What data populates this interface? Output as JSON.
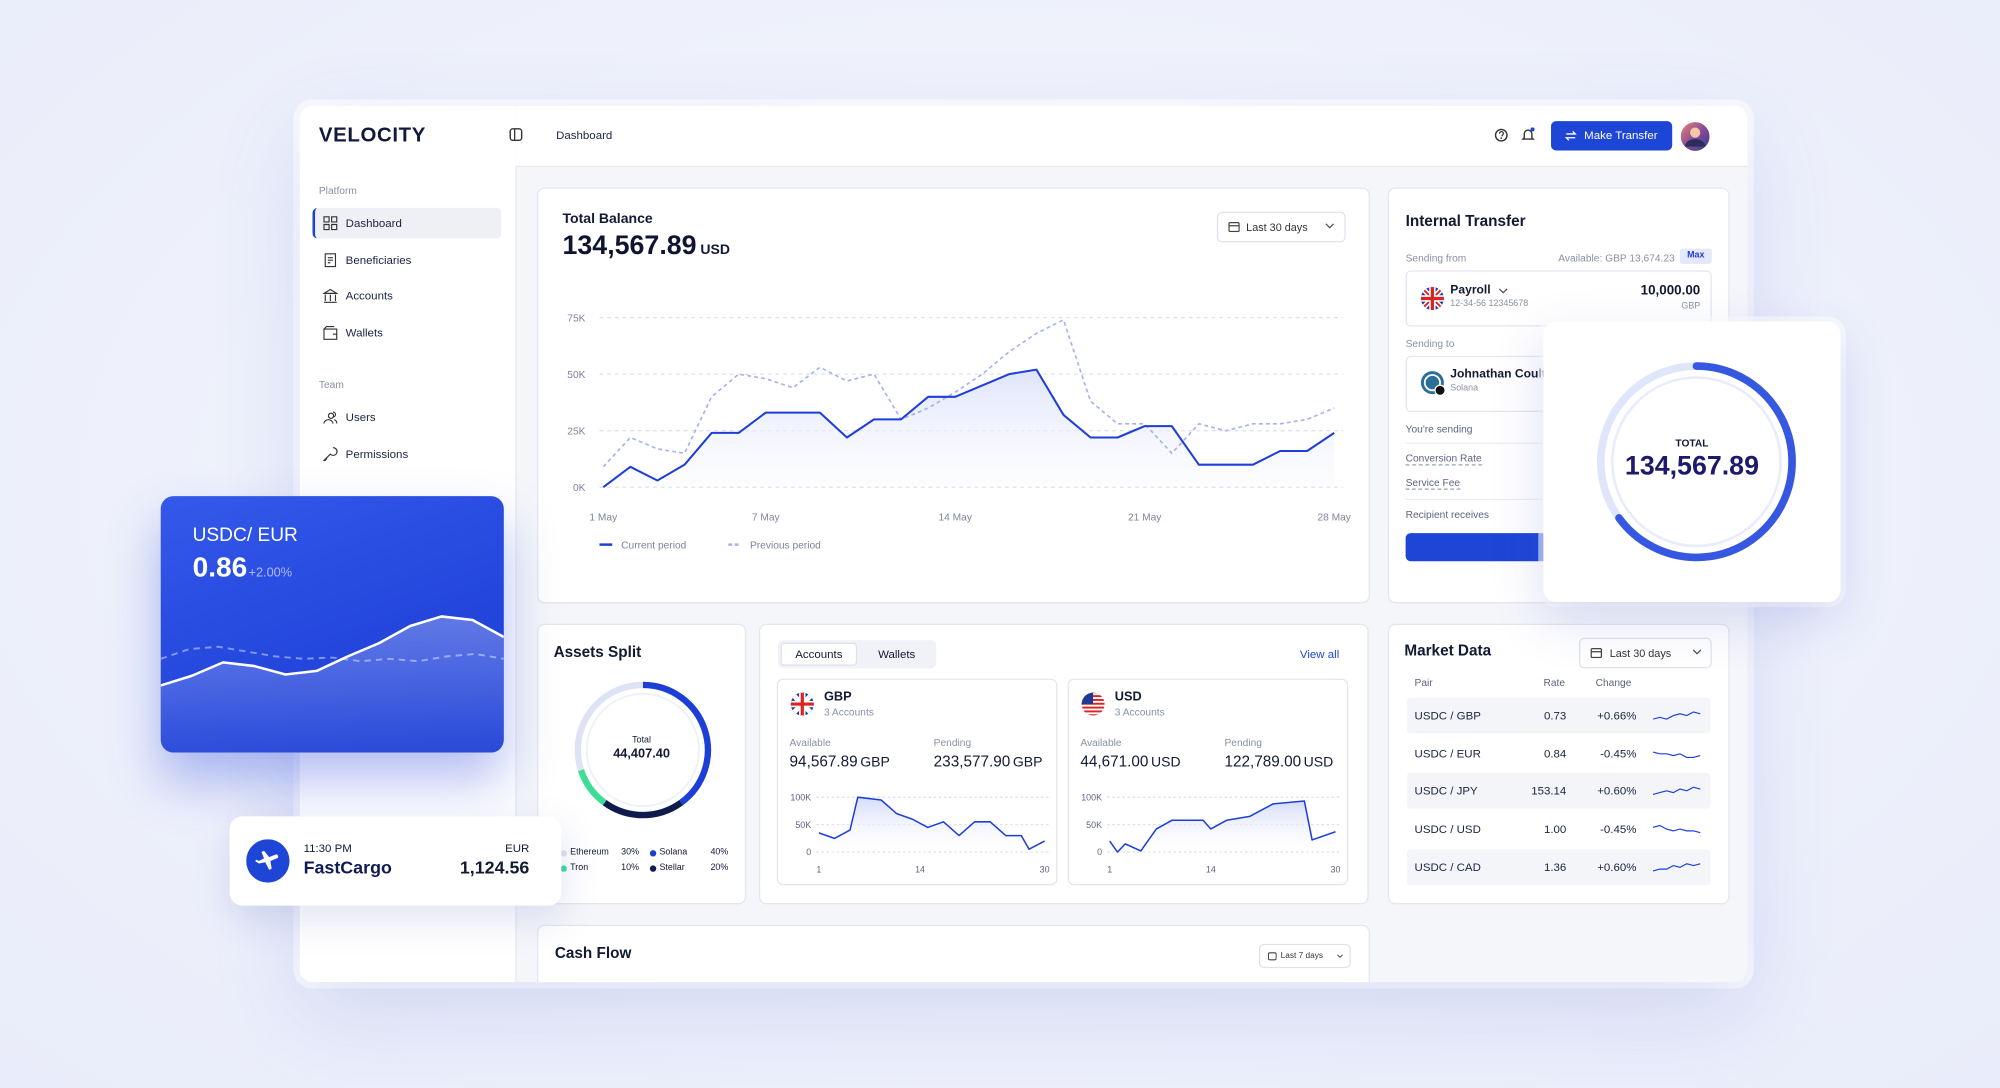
{
  "brand": "VELOCITY",
  "breadcrumb": "Dashboard",
  "action": "Make Transfer",
  "sidebar": {
    "sections": [
      {
        "title": "Platform",
        "items": [
          "Dashboard",
          "Beneficiaries",
          "Accounts",
          "Wallets"
        ]
      },
      {
        "title": "Team",
        "items": [
          "Users",
          "Permissions"
        ]
      }
    ]
  },
  "total_balance": {
    "title": "Total Balance",
    "amount": "134,567.89",
    "currency": "USD",
    "range": "Last 30 days",
    "chart_data": {
      "type": "line",
      "x": [
        1,
        2,
        3,
        4,
        5,
        6,
        7,
        8,
        9,
        10,
        11,
        12,
        13,
        14,
        15,
        16,
        17,
        18,
        19,
        20,
        21,
        22,
        23,
        24,
        25,
        26,
        27,
        28
      ],
      "xlim": [
        1,
        28
      ],
      "xticks": [
        {
          "value": 1,
          "label": "1 May"
        },
        {
          "value": 7,
          "label": "7 May"
        },
        {
          "value": 14,
          "label": "14 May"
        },
        {
          "value": 21,
          "label": "21 May"
        },
        {
          "value": 28,
          "label": "28 May"
        }
      ],
      "ylim": [
        0,
        75000
      ],
      "yticks": [
        {
          "value": 0,
          "label": "0K"
        },
        {
          "value": 25000,
          "label": "25K"
        },
        {
          "value": 50000,
          "label": "50K"
        },
        {
          "value": 75000,
          "label": "75K"
        }
      ],
      "grid": true,
      "series": [
        {
          "name": "Current period",
          "color": "#1d3fd6",
          "values": [
            0,
            9000,
            3000,
            10000,
            24000,
            24000,
            33000,
            33000,
            33000,
            22000,
            30000,
            30000,
            40000,
            40000,
            45000,
            50000,
            52000,
            32000,
            22000,
            22000,
            27000,
            27000,
            10000,
            10000,
            10000,
            16000,
            16000,
            24000
          ]
        },
        {
          "name": "Previous period",
          "color": "#a7b2ee",
          "style": "dashed",
          "values": [
            9000,
            22000,
            17000,
            15000,
            40000,
            50000,
            48000,
            44000,
            53000,
            47000,
            50000,
            30000,
            35000,
            42000,
            50000,
            60000,
            68000,
            74000,
            38000,
            28000,
            28000,
            15000,
            28000,
            25000,
            28000,
            28000,
            30000,
            35000
          ]
        }
      ]
    }
  },
  "internal_transfer": {
    "title": "Internal Transfer",
    "sending_from": "Sending from",
    "available": "Available: GBP 13,674.23",
    "max": "Max",
    "from_account": {
      "name": "Payroll",
      "number": "12-34-56 12345678",
      "amount": "10,000.00",
      "currency": "GBP"
    },
    "sending_to": "Sending to",
    "to_account": {
      "name": "Johnathan Coult",
      "network": "Solana"
    },
    "you_send": "You're sending",
    "conversion_rate": "Conversion Rate",
    "service_fee": "Service Fee",
    "recipient_receives": "Recipient receives"
  },
  "total_widget": {
    "label": "TOTAL",
    "amount": "134,567.89",
    "share": 65
  },
  "rate_card": {
    "pair": "USDC/ EUR",
    "rate": "0.86",
    "change": "+2.00%",
    "chart_data": {
      "type": "area",
      "ylim": [
        0,
        100
      ],
      "series": [
        {
          "color": "#ffffff",
          "values": [
            28,
            36,
            47,
            44,
            37,
            40,
            52,
            63,
            77,
            85,
            82,
            68
          ]
        },
        {
          "color": "#a9bbff",
          "style": "dashed",
          "values": [
            50,
            58,
            60,
            56,
            52,
            50,
            51,
            48,
            50,
            48,
            52,
            54,
            50
          ]
        }
      ]
    }
  },
  "payment_card": {
    "time": "11:30 PM",
    "merchant": "FastCargo",
    "currency": "EUR",
    "amount": "1,124.56"
  },
  "assets_split": {
    "title": "Assets Split",
    "total_label": "Total",
    "total": "44,407.40",
    "chart_data": {
      "type": "donut",
      "categories": [
        "Solana",
        "Stellar",
        "Tron",
        "Ethereum"
      ],
      "values": [
        40,
        20,
        10,
        30
      ],
      "value_labels": [
        "40%",
        "20%",
        "10%",
        "30%"
      ],
      "colors": [
        "#1d3fd6",
        "#0f1b4d",
        "#3ddc97",
        "#dde2f5"
      ]
    }
  },
  "accounts": {
    "tabs": [
      "Accounts",
      "Wallets"
    ],
    "view_all": "View all",
    "items": [
      {
        "code": "GBP",
        "subtitle": "3 Accounts",
        "available_label": "Available",
        "available": "94,567.89",
        "available_currency": "GBP",
        "pending_label": "Pending",
        "pending": "233,577.90",
        "pending_currency": "GBP",
        "chart_data": {
          "type": "area",
          "x": [
            1,
            3,
            5,
            6,
            9,
            11,
            13,
            15,
            17,
            19,
            21,
            23,
            25,
            27,
            28,
            30
          ],
          "values": [
            35000,
            25000,
            40000,
            100000,
            95000,
            70000,
            60000,
            45000,
            55000,
            30000,
            55000,
            55000,
            30000,
            30000,
            5000,
            20000
          ],
          "color": "#1d3fd6",
          "xlim": [
            1,
            30
          ],
          "xticks": [
            1,
            14,
            30
          ],
          "ylim": [
            0,
            100000
          ],
          "yticks": [
            0,
            {
              "value": 50000,
              "label": "50K"
            },
            {
              "value": 100000,
              "label": "100K"
            }
          ],
          "grid": true
        }
      },
      {
        "code": "USD",
        "subtitle": "3 Accounts",
        "available_label": "Available",
        "available": "44,671.00",
        "available_currency": "USD",
        "pending_label": "Pending",
        "pending": "122,789.00",
        "pending_currency": "USD",
        "chart_data": {
          "type": "area",
          "x": [
            1,
            2,
            3,
            5,
            7,
            9,
            13,
            14,
            16,
            19,
            22,
            26,
            27,
            30
          ],
          "values": [
            20000,
            0,
            15000,
            2000,
            42000,
            58000,
            58000,
            42000,
            58000,
            65000,
            88000,
            93000,
            22000,
            37000
          ],
          "color": "#1d3fd6",
          "xlim": [
            1,
            30
          ],
          "xticks": [
            1,
            14,
            30
          ],
          "ylim": [
            0,
            100000
          ],
          "yticks": [
            0,
            {
              "value": 50000,
              "label": "50K"
            },
            {
              "value": 100000,
              "label": "100K"
            }
          ],
          "grid": true
        }
      }
    ]
  },
  "market_data": {
    "title": "Market Data",
    "range": "Last 30 days",
    "columns": [
      "Pair",
      "Rate",
      "Change"
    ],
    "trend_ylim": [
      0,
      10
    ],
    "trend_color": "#1d3fd6",
    "rows": [
      {
        "pair": "USDC / GBP",
        "rate": "0.73",
        "change": "+0.66%",
        "trend": [
          3,
          4,
          3,
          5,
          6,
          5,
          7,
          6
        ]
      },
      {
        "pair": "USDC / EUR",
        "rate": "0.84",
        "change": "-0.45%",
        "trend": [
          6,
          5,
          5,
          4,
          5,
          3,
          3,
          4
        ]
      },
      {
        "pair": "USDC / JPY",
        "rate": "153.14",
        "change": "+0.60%",
        "trend": [
          3,
          4,
          5,
          4,
          6,
          5,
          7,
          6
        ]
      },
      {
        "pair": "USDC / USD",
        "rate": "1.00",
        "change": "-0.45%",
        "trend": [
          6,
          7,
          5,
          4,
          5,
          4,
          4,
          3
        ]
      },
      {
        "pair": "USDC / CAD",
        "rate": "1.36",
        "change": "+0.60%",
        "trend": [
          3,
          4,
          4,
          6,
          5,
          7,
          6,
          7
        ]
      }
    ]
  },
  "cash_flow": {
    "title": "Cash Flow",
    "range": "Last 7 days"
  }
}
